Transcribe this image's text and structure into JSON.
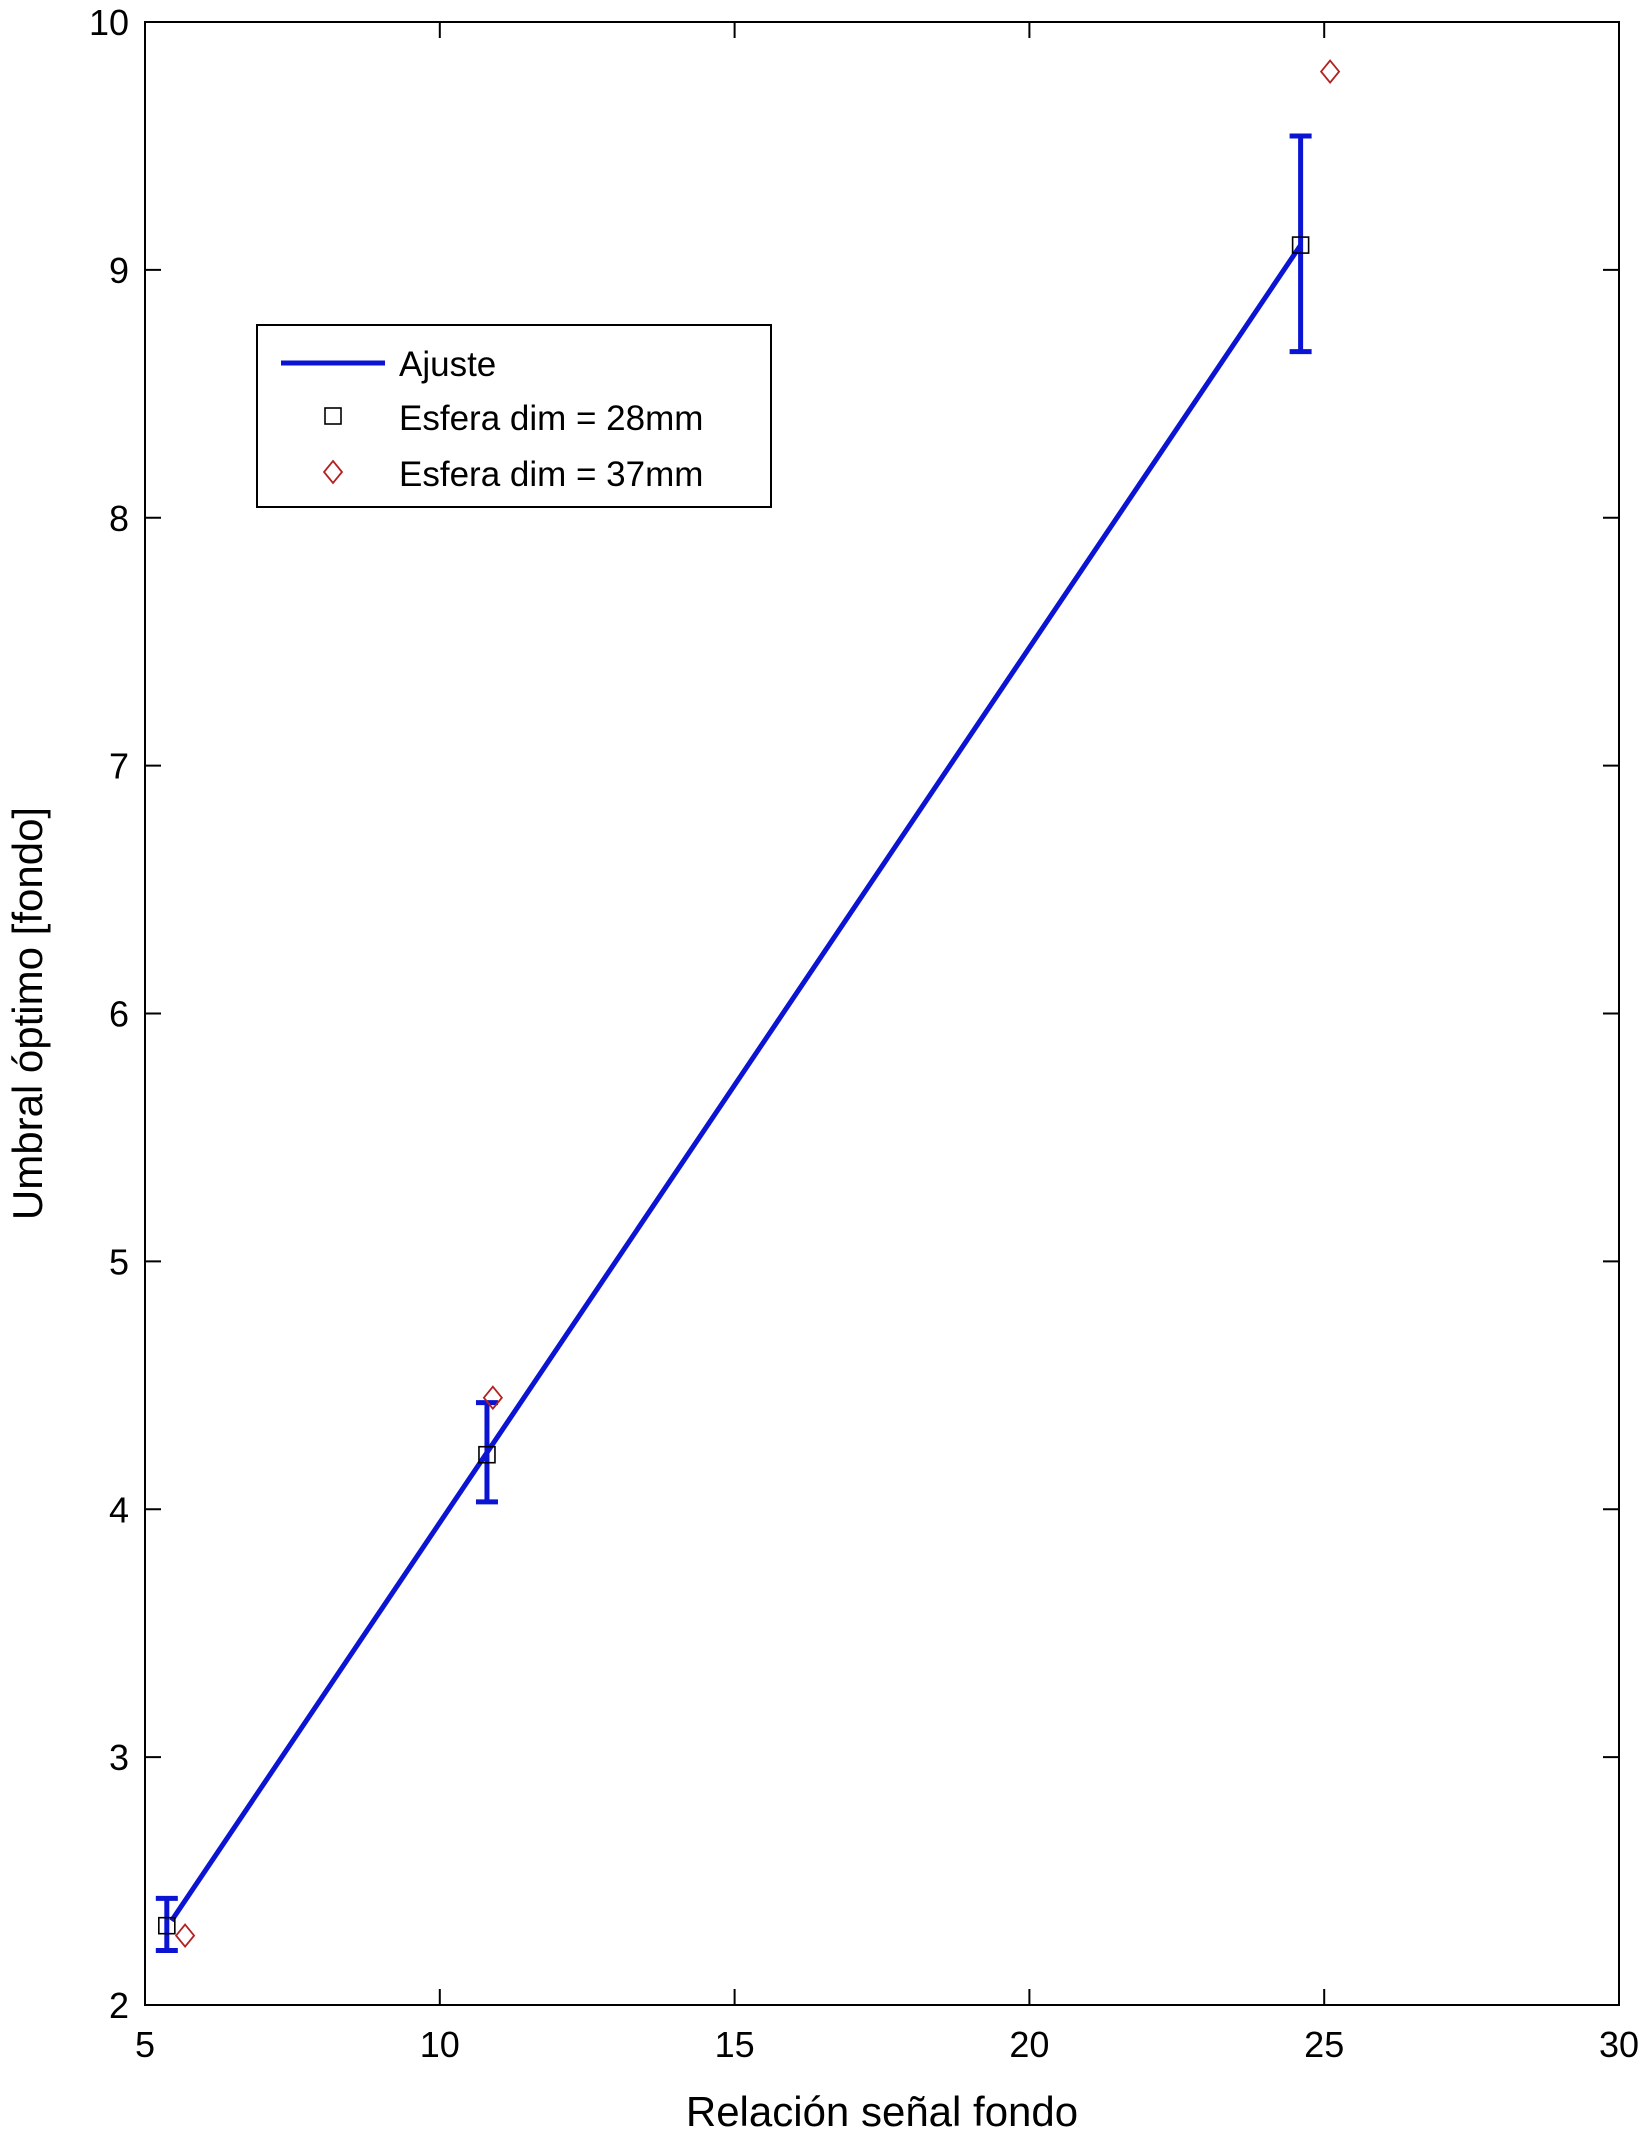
{
  "chart_data": {
    "type": "scatter",
    "xlabel": "Relación señal fondo",
    "ylabel": "Umbral óptimo [fondo]",
    "xlim": [
      5,
      30
    ],
    "ylim": [
      2,
      10
    ],
    "x_ticks": [
      "5",
      "10",
      "15",
      "20",
      "25",
      "30"
    ],
    "y_ticks": [
      "2",
      "3",
      "4",
      "5",
      "6",
      "7",
      "8",
      "9",
      "10"
    ],
    "grid": false,
    "legend_position": "upper-left",
    "series": [
      {
        "name": "Ajuste",
        "kind": "line",
        "color": "#0a14d2",
        "x": [
          5.45,
          24.6
        ],
        "y": [
          2.34,
          9.1
        ]
      },
      {
        "name": "Esfera dim = 28mm",
        "kind": "marker",
        "marker": "square",
        "color": "#000000",
        "x": [
          5.37,
          10.8,
          24.6
        ],
        "y": [
          2.32,
          4.22,
          9.1
        ],
        "error_low": [
          2.22,
          4.03,
          8.67
        ],
        "error_high": [
          2.43,
          4.43,
          9.54
        ],
        "error_color": "#0a14d2"
      },
      {
        "name": "Esfera dim = 37mm",
        "kind": "marker",
        "marker": "diamond",
        "color": "#b22222",
        "x": [
          5.68,
          10.9,
          25.1
        ],
        "y": [
          2.28,
          4.45,
          9.8
        ]
      }
    ]
  }
}
